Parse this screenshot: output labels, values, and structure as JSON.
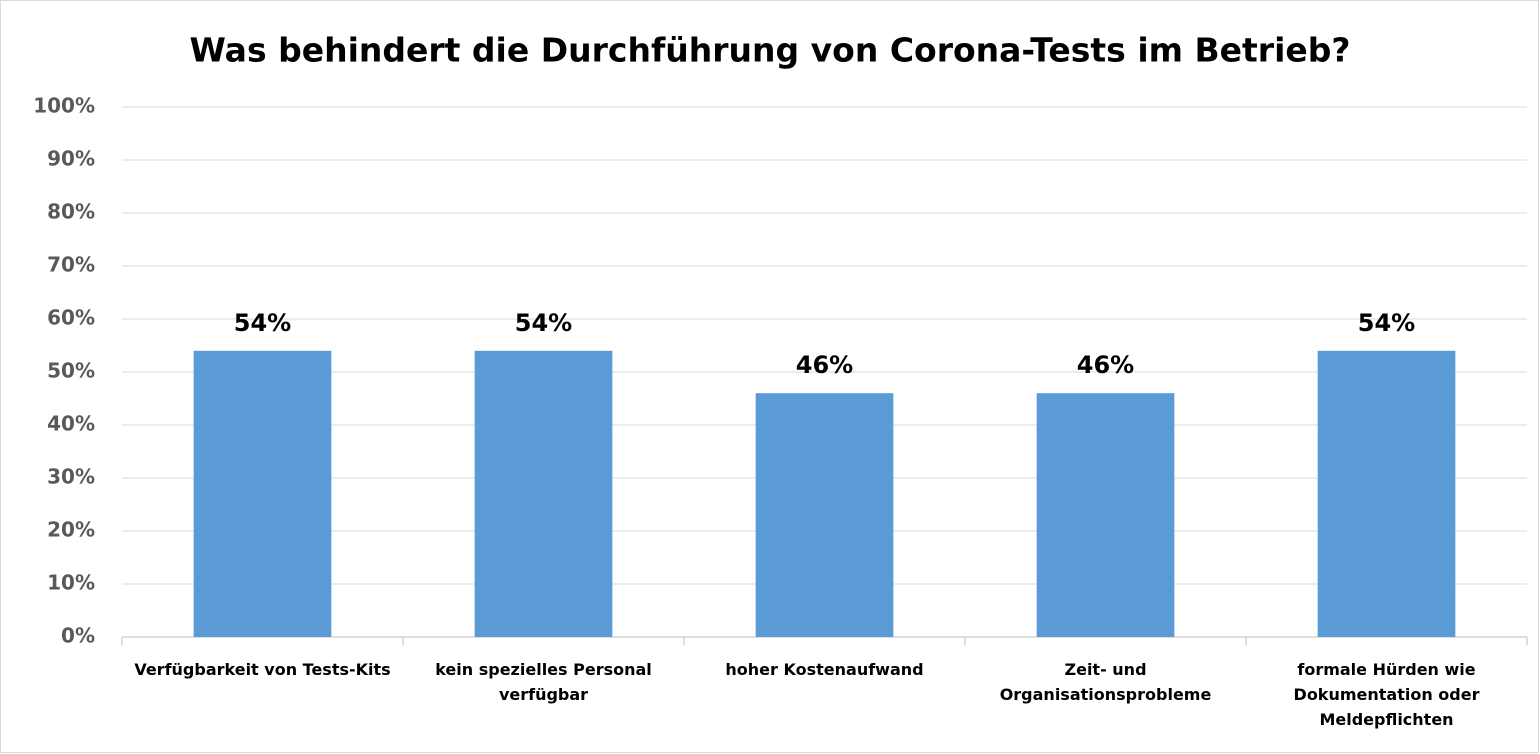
{
  "chart_data": {
    "type": "bar",
    "title": "Was behindert die Durchführung von Corona-Tests im Betrieb?",
    "categories": [
      "Verfügbarkeit von Tests-Kits",
      "kein spezielles Personal verfügbar",
      "hoher Kostenaufwand",
      "Zeit- und Organisationsprobleme",
      "formale Hürden wie Dokumentation oder Meldepflichten"
    ],
    "values": [
      54,
      54,
      46,
      46,
      54
    ],
    "value_labels": [
      "54%",
      "54%",
      "46%",
      "46%",
      "54%"
    ],
    "color": "#5b9bd5",
    "ylim": [
      0,
      100
    ],
    "yticks": [
      {
        "value": 0,
        "label": "0%"
      },
      {
        "value": 10,
        "label": "10%"
      },
      {
        "value": 20,
        "label": "20%"
      },
      {
        "value": 30,
        "label": "30%"
      },
      {
        "value": 40,
        "label": "40%"
      },
      {
        "value": 50,
        "label": "50%"
      },
      {
        "value": 60,
        "label": "60%"
      },
      {
        "value": 70,
        "label": "70%"
      },
      {
        "value": 80,
        "label": "80%"
      },
      {
        "value": 90,
        "label": "90%"
      },
      {
        "value": 100,
        "label": "100%"
      }
    ],
    "grid": true
  }
}
